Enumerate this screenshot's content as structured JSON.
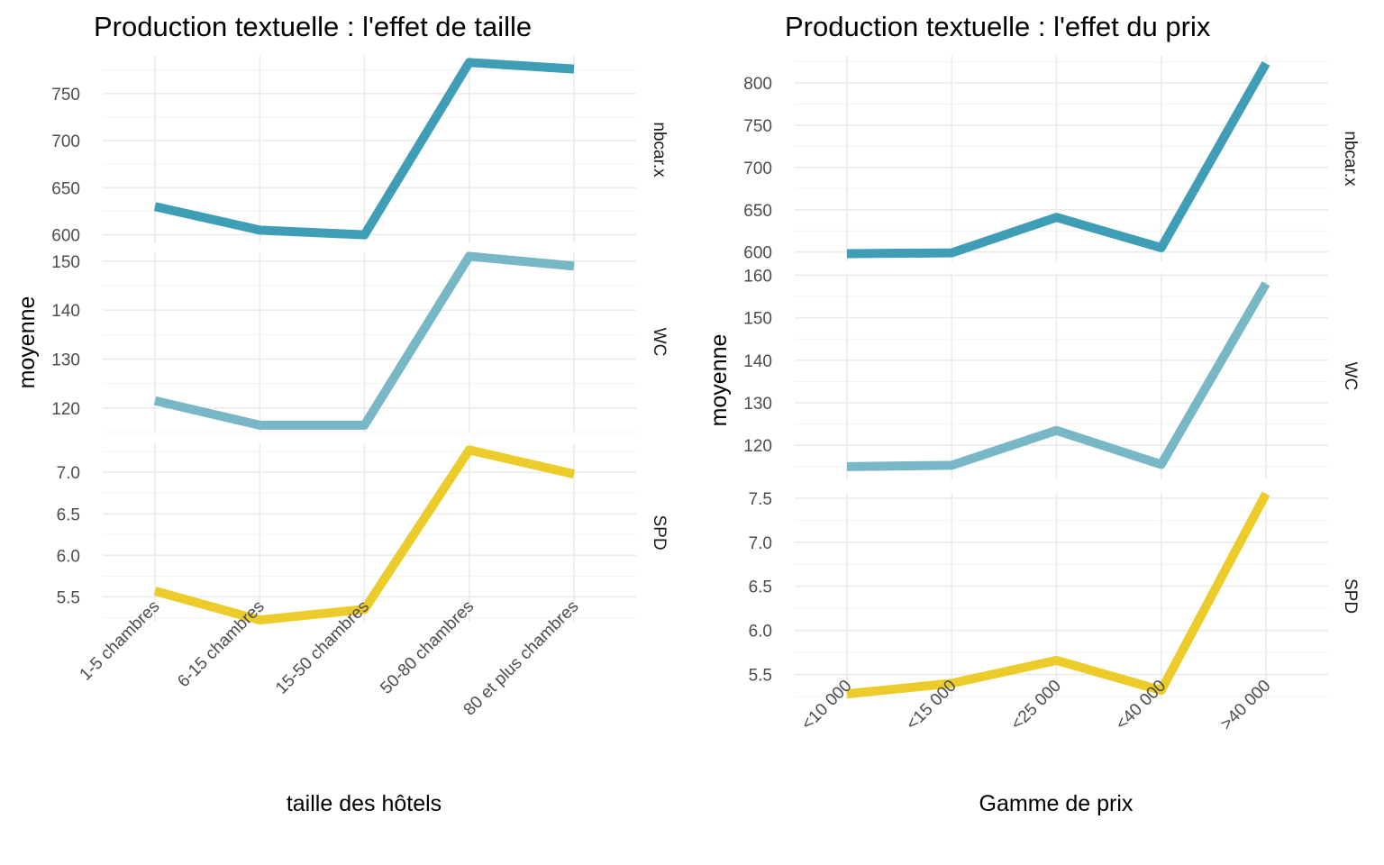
{
  "chart_data": [
    {
      "type": "line",
      "title": "Production textuelle : l'effet de taille",
      "xlabel": "taille des hôtels",
      "ylabel": "moyenne",
      "categories": [
        "1-5 chambres",
        "6-15 chambres",
        "15-50 chambres",
        "50-80 chambres",
        "80 et plus chambres"
      ],
      "facets": [
        {
          "name": "nbcar.x",
          "color": "#3f9db5",
          "ylim": [
            591,
            790
          ],
          "ticks": [
            600,
            650,
            700,
            750
          ],
          "tick_labels": [
            "600",
            "650",
            "700",
            "750"
          ],
          "values": [
            630,
            605,
            600,
            783,
            776
          ]
        },
        {
          "name": "WC",
          "color": "#78b7c5",
          "ylim": [
            115,
            152
          ],
          "ticks": [
            120,
            130,
            140,
            150
          ],
          "tick_labels": [
            "120",
            "130",
            "140",
            "150"
          ],
          "values": [
            121.5,
            116.5,
            116.5,
            151,
            149
          ]
        },
        {
          "name": "SPD",
          "color": "#ebcc2a",
          "ylim": [
            5.2,
            7.35
          ],
          "ticks": [
            5.5,
            6.0,
            6.5,
            7.0
          ],
          "tick_labels": [
            "5.5",
            "6.0",
            "6.5",
            "7.0"
          ],
          "values": [
            5.57,
            5.22,
            5.35,
            7.27,
            6.98
          ]
        }
      ]
    },
    {
      "type": "line",
      "title": "Production textuelle : l'effet du prix",
      "xlabel": "Gamme de prix",
      "ylabel": "moyenne",
      "categories": [
        "<10 000",
        "<15 000",
        "<25 000",
        "<40 000",
        ">40 000"
      ],
      "facets": [
        {
          "name": "nbcar.x",
          "color": "#3f9db5",
          "ylim": [
            589,
            832
          ],
          "ticks": [
            600,
            650,
            700,
            750,
            800
          ],
          "tick_labels": [
            "600",
            "650",
            "700",
            "750",
            "800"
          ],
          "values": [
            598,
            599,
            641,
            605,
            823
          ]
        },
        {
          "name": "WC",
          "color": "#78b7c5",
          "ylim": [
            112,
            160.5
          ],
          "ticks": [
            120,
            130,
            140,
            150,
            160
          ],
          "tick_labels": [
            "120",
            "130",
            "140",
            "150",
            "160"
          ],
          "values": [
            115,
            115.3,
            123.5,
            115.5,
            158
          ]
        },
        {
          "name": "SPD",
          "color": "#ebcc2a",
          "ylim": [
            5.22,
            7.56
          ],
          "ticks": [
            5.5,
            6.0,
            6.5,
            7.0,
            7.5
          ],
          "tick_labels": [
            "5.5",
            "6.0",
            "6.5",
            "7.0",
            "7.5"
          ],
          "values": [
            5.28,
            5.4,
            5.66,
            5.32,
            7.55
          ]
        }
      ]
    }
  ]
}
